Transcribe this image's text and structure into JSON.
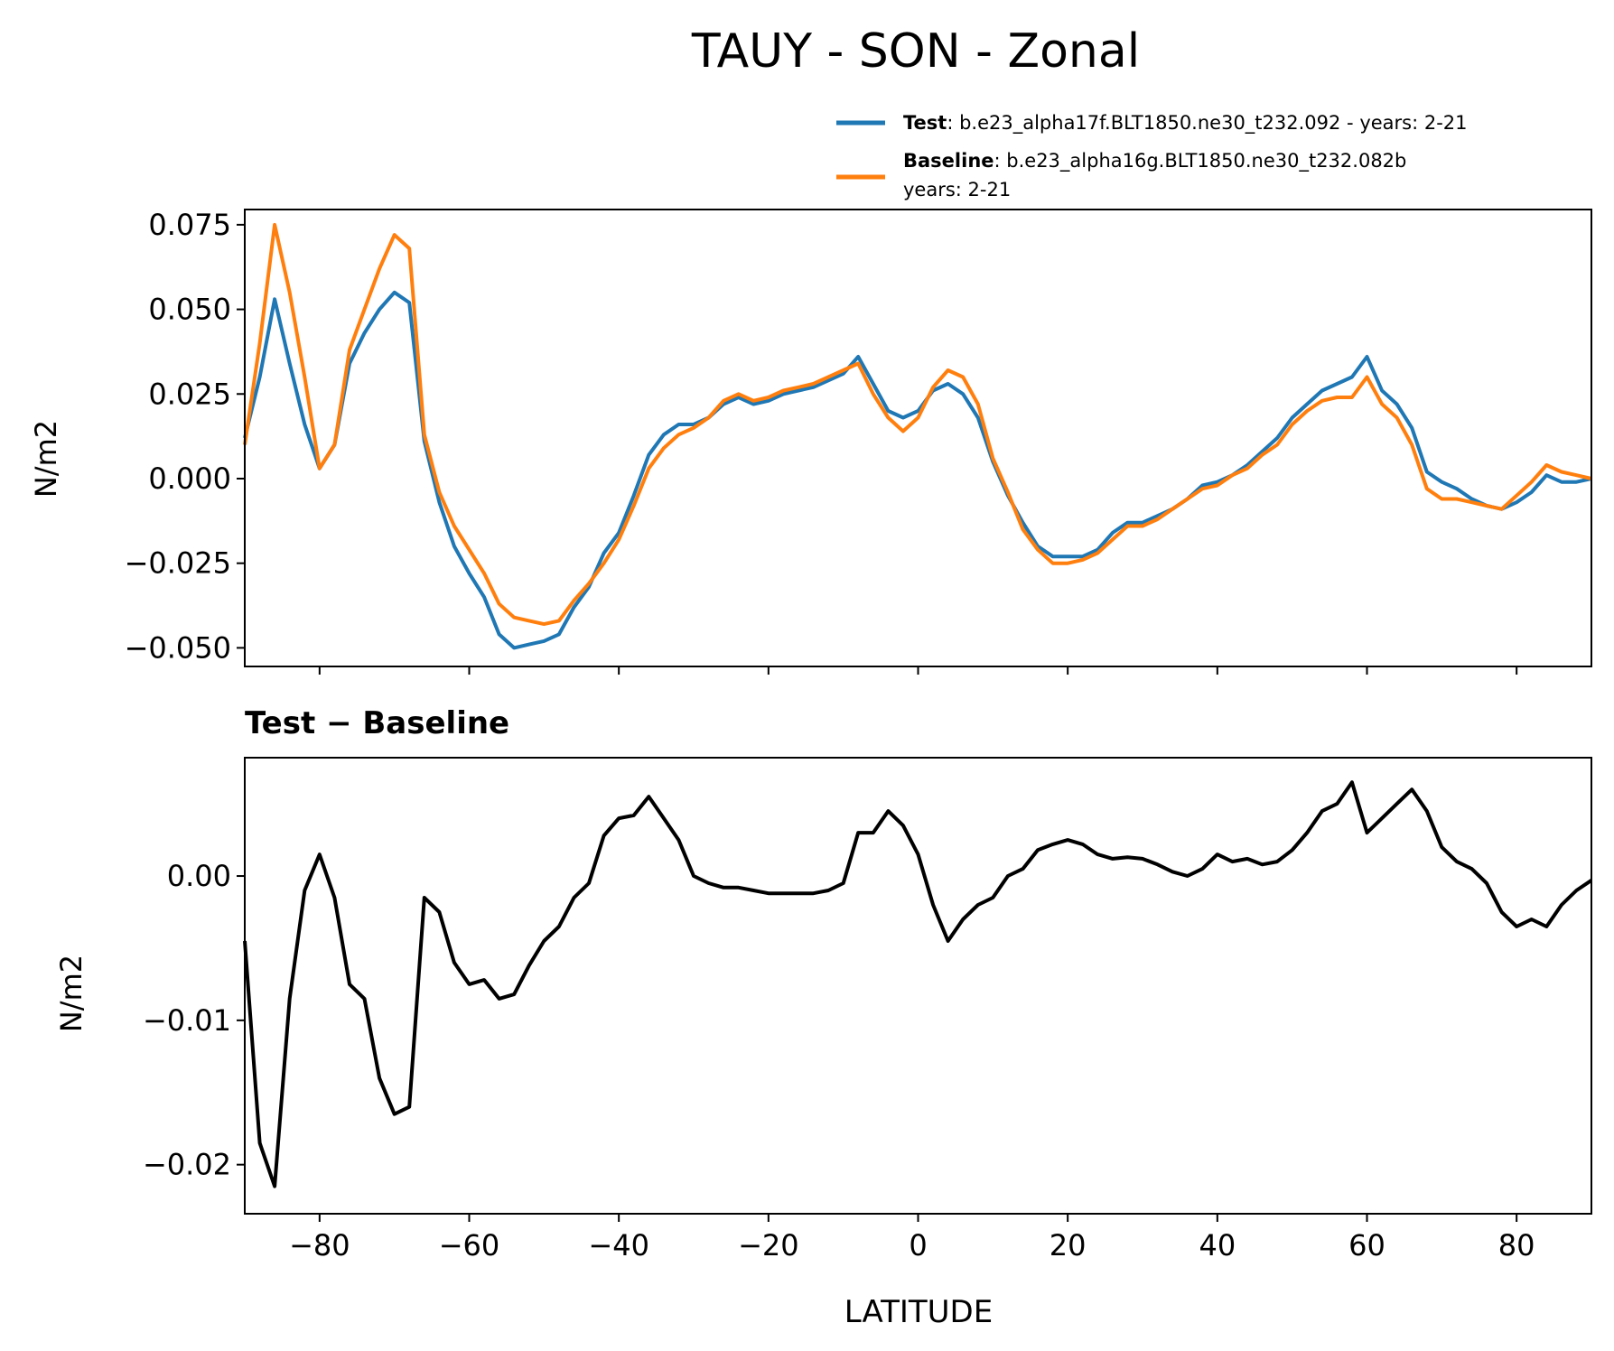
{
  "chart_data": {
    "title": "TAUY - SON - Zonal",
    "colors": {
      "test": "#1f77b4",
      "baseline": "#ff7f0e",
      "difference": "#000000"
    },
    "legend": {
      "placement": "top-right (above top panel)",
      "test": {
        "label": "Test",
        "text": ": b.e23_alpha17f.BLT1850.ne30_t232.092 - years: 2-21"
      },
      "baseline": {
        "label": "Baseline",
        "text": ": b.e23_alpha16g.BLT1850.ne30_t232.082b",
        "text2": "years: 2-21"
      }
    },
    "x": [
      -90,
      -88,
      -86,
      -84,
      -82,
      -80,
      -78,
      -76,
      -74,
      -72,
      -70,
      -68,
      -66,
      -64,
      -62,
      -60,
      -58,
      -56,
      -54,
      -52,
      -50,
      -48,
      -46,
      -44,
      -42,
      -40,
      -38,
      -36,
      -34,
      -32,
      -30,
      -28,
      -26,
      -24,
      -22,
      -20,
      -18,
      -16,
      -14,
      -12,
      -10,
      -8,
      -6,
      -4,
      -2,
      0,
      2,
      4,
      6,
      8,
      10,
      12,
      14,
      16,
      18,
      20,
      22,
      24,
      26,
      28,
      30,
      32,
      34,
      36,
      38,
      40,
      42,
      44,
      46,
      48,
      50,
      52,
      54,
      56,
      58,
      60,
      62,
      64,
      66,
      68,
      70,
      72,
      74,
      76,
      78,
      80,
      82,
      84,
      86,
      88,
      90
    ],
    "panels": [
      {
        "type": "line",
        "ylabel": "N/m2",
        "xlim": [
          -90,
          90
        ],
        "ylim": [
          -0.0555,
          0.0795
        ],
        "yticks": [
          {
            "v": 0.075,
            "label": "0.075"
          },
          {
            "v": 0.05,
            "label": "0.050"
          },
          {
            "v": 0.025,
            "label": "0.025"
          },
          {
            "v": 0.0,
            "label": "0.000"
          },
          {
            "v": -0.025,
            "label": "−0.025"
          },
          {
            "v": -0.05,
            "label": "−0.050"
          }
        ],
        "series": [
          {
            "name": "Test",
            "values": [
              0.012,
              0.03,
              0.053,
              0.034,
              0.016,
              0.003,
              0.01,
              0.034,
              0.043,
              0.05,
              0.055,
              0.052,
              0.011,
              -0.007,
              -0.02,
              -0.028,
              -0.035,
              -0.046,
              -0.05,
              -0.049,
              -0.048,
              -0.046,
              -0.038,
              -0.032,
              -0.022,
              -0.016,
              -0.005,
              0.007,
              0.013,
              0.016,
              0.016,
              0.018,
              0.022,
              0.024,
              0.022,
              0.023,
              0.025,
              0.026,
              0.027,
              0.029,
              0.031,
              0.036,
              0.028,
              0.02,
              0.018,
              0.02,
              0.026,
              0.028,
              0.025,
              0.018,
              0.005,
              -0.005,
              -0.013,
              -0.02,
              -0.023,
              -0.023,
              -0.023,
              -0.021,
              -0.016,
              -0.013,
              -0.013,
              -0.011,
              -0.009,
              -0.006,
              -0.002,
              -0.001,
              0.001,
              0.004,
              0.008,
              0.012,
              0.018,
              0.022,
              0.026,
              0.028,
              0.03,
              0.036,
              0.026,
              0.022,
              0.015,
              0.002,
              -0.001,
              -0.003,
              -0.006,
              -0.008,
              -0.009,
              -0.007,
              -0.004,
              0.001,
              -0.001,
              -0.001,
              0.0
            ]
          },
          {
            "name": "Baseline",
            "values": [
              0.01,
              0.04,
              0.075,
              0.055,
              0.03,
              0.003,
              0.01,
              0.038,
              0.05,
              0.062,
              0.072,
              0.068,
              0.013,
              -0.004,
              -0.014,
              -0.021,
              -0.028,
              -0.037,
              -0.041,
              -0.042,
              -0.043,
              -0.042,
              -0.036,
              -0.031,
              -0.025,
              -0.018,
              -0.008,
              0.003,
              0.009,
              0.013,
              0.015,
              0.018,
              0.023,
              0.025,
              0.023,
              0.024,
              0.026,
              0.027,
              0.028,
              0.03,
              0.032,
              0.034,
              0.025,
              0.018,
              0.014,
              0.018,
              0.027,
              0.032,
              0.03,
              0.022,
              0.006,
              -0.004,
              -0.015,
              -0.021,
              -0.025,
              -0.025,
              -0.024,
              -0.022,
              -0.018,
              -0.014,
              -0.014,
              -0.012,
              -0.009,
              -0.006,
              -0.003,
              -0.002,
              0.001,
              0.003,
              0.007,
              0.01,
              0.016,
              0.02,
              0.023,
              0.024,
              0.024,
              0.03,
              0.022,
              0.018,
              0.01,
              -0.003,
              -0.006,
              -0.006,
              -0.007,
              -0.008,
              -0.009,
              -0.005,
              -0.001,
              0.004,
              0.002,
              0.001,
              0.0
            ]
          }
        ]
      },
      {
        "type": "line",
        "title": "Test − Baseline",
        "ylabel": "N/m2",
        "xlabel": "LATITUDE",
        "xlim": [
          -90,
          90
        ],
        "ylim": [
          -0.0234,
          0.0082
        ],
        "yticks": [
          {
            "v": 0.0,
            "label": "0.00"
          },
          {
            "v": -0.01,
            "label": "−0.01"
          },
          {
            "v": -0.02,
            "label": "−0.02"
          }
        ],
        "xticks": [
          {
            "v": -80,
            "label": "−80"
          },
          {
            "v": -60,
            "label": "−60"
          },
          {
            "v": -40,
            "label": "−40"
          },
          {
            "v": -20,
            "label": "−20"
          },
          {
            "v": 0,
            "label": "0"
          },
          {
            "v": 20,
            "label": "20"
          },
          {
            "v": 40,
            "label": "40"
          },
          {
            "v": 60,
            "label": "60"
          },
          {
            "v": 80,
            "label": "80"
          }
        ],
        "series": [
          {
            "values": [
              -0.0045,
              -0.0185,
              -0.0215,
              -0.0085,
              -0.001,
              0.0015,
              -0.0015,
              -0.0075,
              -0.0085,
              -0.014,
              -0.0165,
              -0.016,
              -0.0015,
              -0.0025,
              -0.006,
              -0.0075,
              -0.0072,
              -0.0085,
              -0.0082,
              -0.0062,
              -0.0045,
              -0.0035,
              -0.0015,
              -0.0005,
              0.0028,
              0.004,
              0.0042,
              0.0055,
              0.004,
              0.0025,
              0.0,
              -0.0005,
              -0.0008,
              -0.0008,
              -0.001,
              -0.0012,
              -0.0012,
              -0.0012,
              -0.0012,
              -0.001,
              -0.0005,
              0.003,
              0.003,
              0.0045,
              0.0035,
              0.0015,
              -0.002,
              -0.0045,
              -0.003,
              -0.002,
              -0.0015,
              0.0,
              0.0005,
              0.0018,
              0.0022,
              0.0025,
              0.0022,
              0.0015,
              0.0012,
              0.0013,
              0.0012,
              0.0008,
              0.0003,
              0.0,
              0.0005,
              0.0015,
              0.001,
              0.0012,
              0.0008,
              0.001,
              0.0018,
              0.003,
              0.0045,
              0.005,
              0.0065,
              0.003,
              0.004,
              0.005,
              0.006,
              0.0045,
              0.002,
              0.001,
              0.0005,
              -0.0005,
              -0.0025,
              -0.0035,
              -0.003,
              -0.0035,
              -0.002,
              -0.001,
              -0.0003
            ]
          }
        ]
      }
    ]
  }
}
